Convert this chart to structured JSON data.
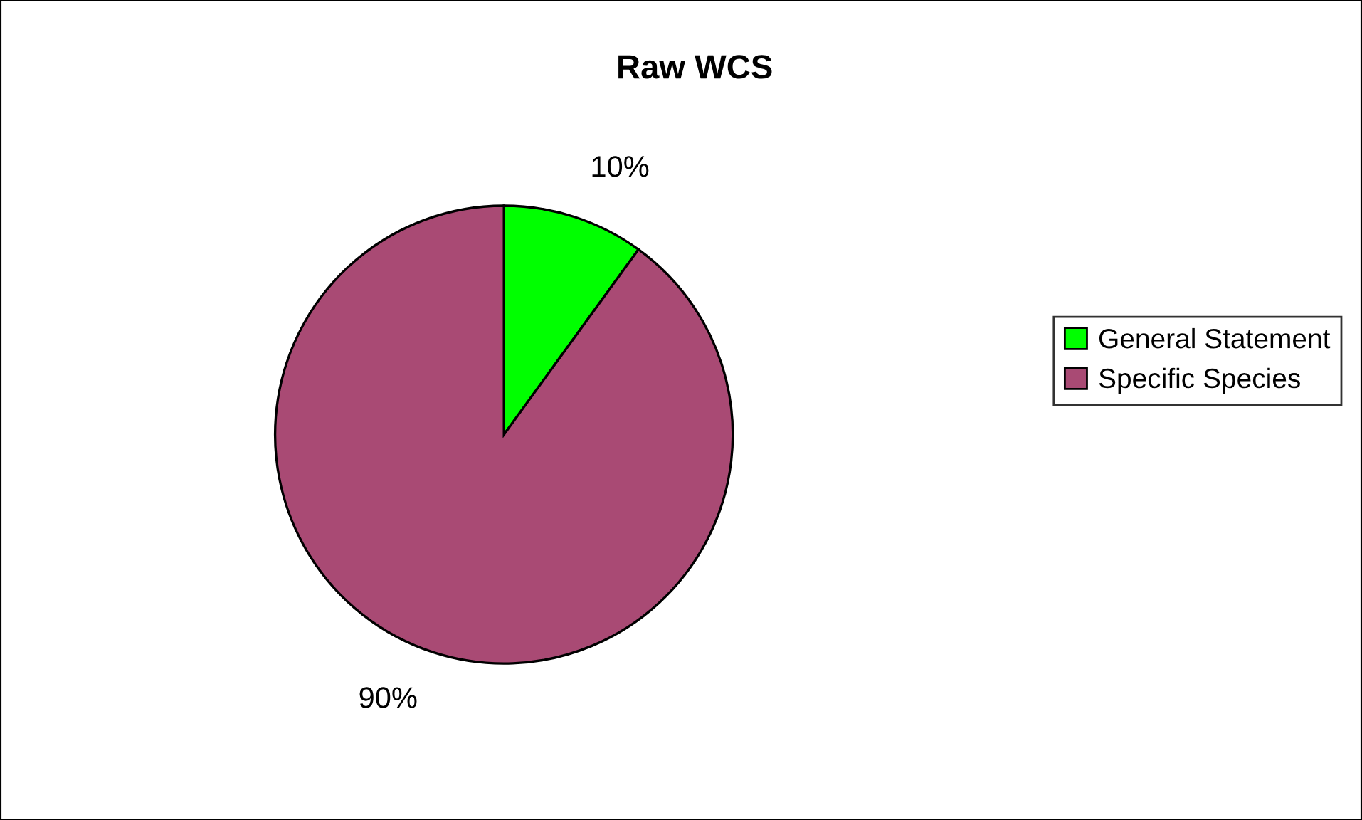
{
  "chart_data": {
    "type": "pie",
    "title": "Raw WCS",
    "categories": [
      "General Statement",
      "Specific Species"
    ],
    "values": [
      10,
      90
    ],
    "colors": [
      "#00ff00",
      "#a94a74"
    ],
    "value_labels": [
      "10%",
      "90%"
    ],
    "legend": "right"
  }
}
